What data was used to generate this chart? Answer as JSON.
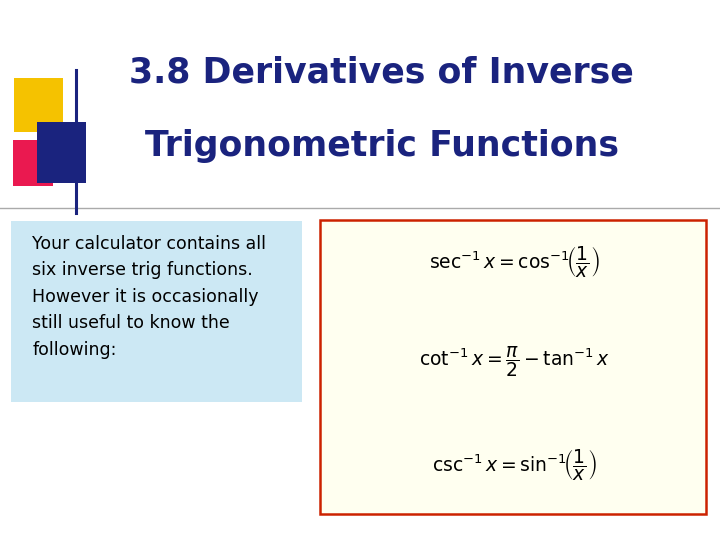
{
  "title_line1": "3.8 Derivatives of Inverse",
  "title_line2": "Trigonometric Functions",
  "title_color": "#1a237e",
  "bg_color": "#ffffff",
  "text_box_color": "#cce8f4",
  "formula_box_color": "#fffff0",
  "formula_box_border": "#cc2200",
  "body_text_lines": [
    "Your calculator contains all",
    "six inverse trig functions.",
    "However it is occasionally",
    "still useful to know the",
    "following:"
  ],
  "body_text_color": "#000000",
  "accent_yellow": "#f5c200",
  "accent_red": "#e8003d",
  "accent_blue": "#1a237e",
  "horizontal_line_y": 0.615,
  "figsize": [
    7.2,
    5.4
  ],
  "dpi": 100
}
